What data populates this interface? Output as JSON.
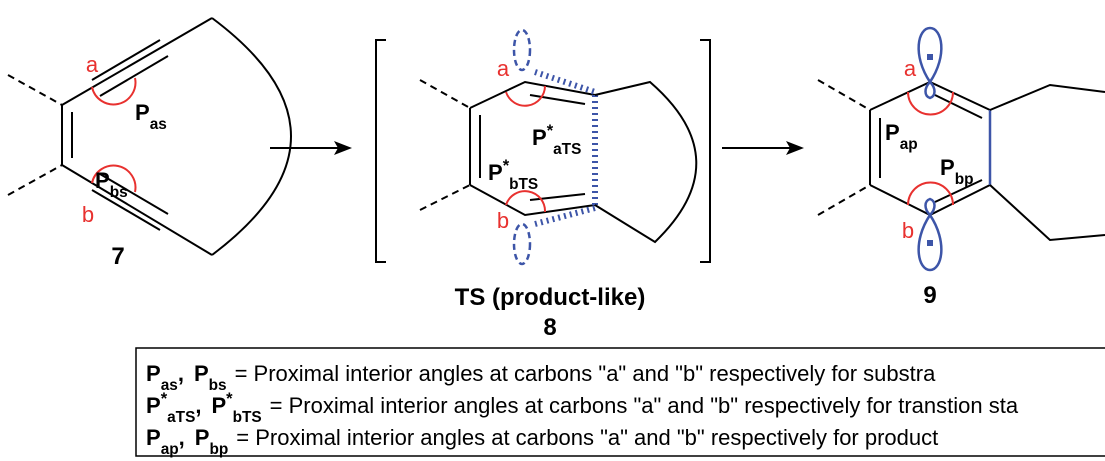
{
  "scheme": {
    "substrate": {
      "label": "7",
      "sites": [
        "a",
        "b"
      ],
      "angles": [
        {
          "symbol": "P",
          "sub": "as"
        },
        {
          "symbol": "P",
          "sub": "bs"
        }
      ]
    },
    "transition_state": {
      "caption": "TS (product-like)",
      "label": "8",
      "sites": [
        "a",
        "b"
      ],
      "angles": [
        {
          "symbol": "P",
          "sup": "*",
          "sub": "aTS"
        },
        {
          "symbol": "P",
          "sup": "*",
          "sub": "bTS"
        }
      ]
    },
    "product": {
      "label": "9",
      "sites": [
        "a",
        "b"
      ],
      "angles": [
        {
          "symbol": "P",
          "sub": "ap"
        },
        {
          "symbol": "P",
          "sub": "bp"
        }
      ]
    }
  },
  "legend": [
    {
      "terms": [
        {
          "symbol": "P",
          "sub": "as",
          "after": ","
        },
        {
          "symbol": "P",
          "sub": "bs"
        }
      ],
      "definition": "= Proximal interior angles at carbons \"a\" and \"b\" respectively for substra"
    },
    {
      "terms": [
        {
          "symbol": "P",
          "sup": "*",
          "sub": "aTS",
          "after": ","
        },
        {
          "symbol": "P",
          "sup": "*",
          "sub": "bTS"
        }
      ],
      "definition": "= Proximal interior angles at carbons \"a\" and \"b\" respectively for transtion sta"
    },
    {
      "terms": [
        {
          "symbol": "P",
          "sub": "ap",
          "after": ","
        },
        {
          "symbol": "P",
          "sub": "bp"
        }
      ],
      "definition": "= Proximal interior angles at carbons \"a\" and \"b\" respectively for product"
    }
  ]
}
